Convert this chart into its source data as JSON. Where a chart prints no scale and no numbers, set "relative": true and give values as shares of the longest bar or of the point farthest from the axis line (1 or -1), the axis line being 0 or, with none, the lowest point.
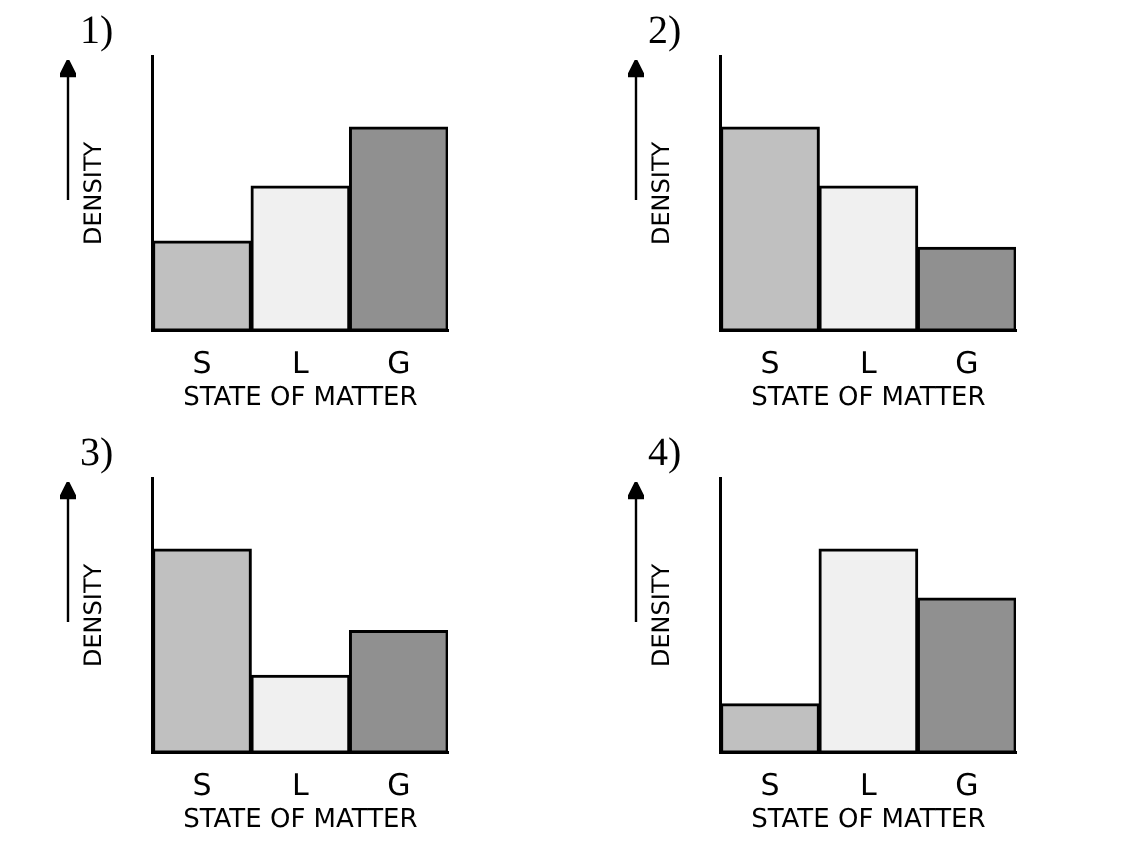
{
  "chart_data": [
    {
      "type": "bar",
      "title": "1)",
      "xlabel": "STATE OF MATTER",
      "ylabel": "DENSITY",
      "categories": [
        "S",
        "L",
        "G"
      ],
      "values": [
        0.44,
        0.71,
        1
      ],
      "colors": [
        "#c0c0c0",
        "#f0f0f0",
        "#909090"
      ],
      "relative": true,
      "grid": false,
      "legend": false
    },
    {
      "type": "bar",
      "title": "2)",
      "xlabel": "STATE OF MATTER",
      "ylabel": "DENSITY",
      "categories": [
        "S",
        "L",
        "G"
      ],
      "values": [
        1,
        0.71,
        0.41
      ],
      "colors": [
        "#c0c0c0",
        "#f0f0f0",
        "#909090"
      ],
      "relative": true,
      "grid": false,
      "legend": false
    },
    {
      "type": "bar",
      "title": "3)",
      "xlabel": "STATE OF MATTER",
      "ylabel": "DENSITY",
      "categories": [
        "S",
        "L",
        "G"
      ],
      "values": [
        1,
        0.38,
        0.6
      ],
      "colors": [
        "#c0c0c0",
        "#f0f0f0",
        "#909090"
      ],
      "relative": true,
      "grid": false,
      "legend": false
    },
    {
      "type": "bar",
      "title": "4)",
      "xlabel": "STATE OF MATTER",
      "ylabel": "DENSITY",
      "categories": [
        "S",
        "L",
        "G"
      ],
      "values": [
        0.24,
        1,
        0.76
      ],
      "colors": [
        "#c0c0c0",
        "#f0f0f0",
        "#909090"
      ],
      "relative": true,
      "grid": false,
      "legend": false
    }
  ]
}
